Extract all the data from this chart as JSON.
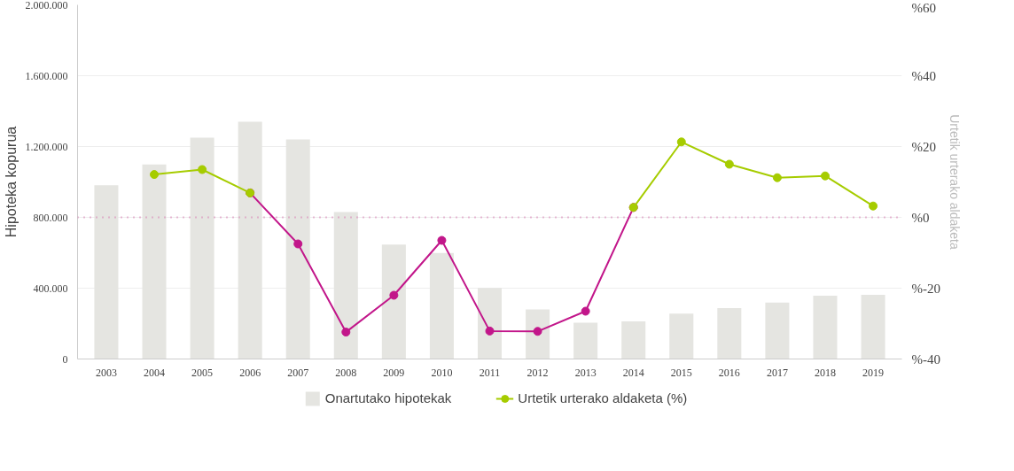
{
  "chart_data": {
    "type": "bar",
    "categories": [
      "2003",
      "2004",
      "2005",
      "2006",
      "2007",
      "2008",
      "2009",
      "2010",
      "2011",
      "2012",
      "2013",
      "2014",
      "2015",
      "2016",
      "2017",
      "2018",
      "2019"
    ],
    "ylabel": "Hipoteka kopurua",
    "y2label": "Urtetik urterako aldaketa",
    "series": [
      {
        "name": "Onartutako hipotekak",
        "color": "#e5e5e1",
        "values": [
          981000,
          1099000,
          1250000,
          1340000,
          1240000,
          830000,
          646000,
          599000,
          401000,
          280000,
          205000,
          212000,
          256000,
          288000,
          319000,
          358000,
          363000
        ]
      },
      {
        "type": "line",
        "axis": "y2",
        "color": "#c2168a",
        "values": [
          null,
          null,
          null,
          6.9,
          -7.5,
          -32.4,
          -22,
          -6.5,
          -32.1,
          -32.2,
          -26.5,
          2.8,
          null,
          null,
          null,
          null,
          null
        ]
      },
      {
        "name": "Urtetik urterako aldaketa (%)",
        "type": "line",
        "axis": "y2",
        "color": "#a6cc00",
        "values": [
          null,
          12.1,
          13.5,
          6.9,
          null,
          null,
          null,
          null,
          null,
          null,
          null,
          2.8,
          21.3,
          15,
          11.2,
          11.7,
          3.2
        ]
      }
    ],
    "ylim": [
      0,
      2000000
    ],
    "yticks": [
      0,
      {
        "value": 400000,
        "label": "400.000"
      },
      {
        "value": 800000,
        "label": "800.000"
      },
      {
        "value": 1200000,
        "label": "1.200.000"
      },
      {
        "value": 1600000,
        "label": "1.600.000"
      },
      {
        "value": 2000000,
        "label": "2.000.000"
      }
    ],
    "y2lim": [
      -40,
      60
    ],
    "y2ticks": [
      {
        "value": -40,
        "label": "%-40"
      },
      {
        "value": -20,
        "label": "%-20"
      },
      {
        "value": 0,
        "label": "%0"
      },
      {
        "value": 20,
        "label": "%20"
      },
      {
        "value": 40,
        "label": "%40"
      },
      {
        "value": 60,
        "label": "%60"
      }
    ],
    "ref_lines": [
      {
        "axis": "y2",
        "value": 0,
        "color": "#d67bb0",
        "line_style": "dotted"
      }
    ],
    "grid": "y",
    "legend": "bottom",
    "marker": "circle"
  }
}
